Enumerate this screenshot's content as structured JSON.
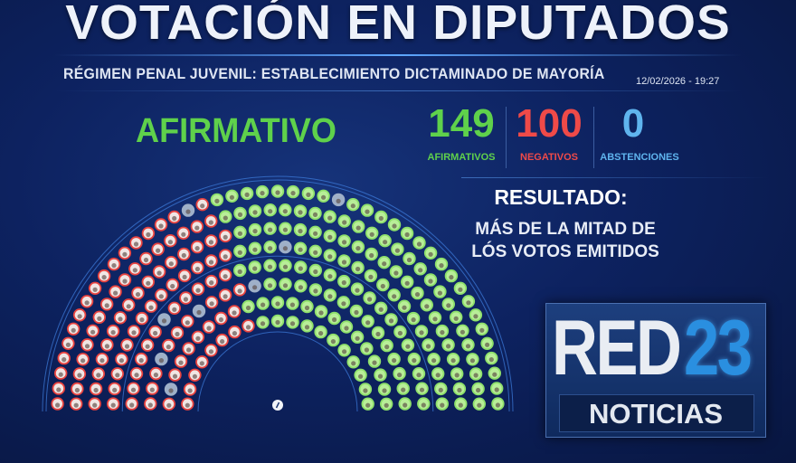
{
  "header": {
    "title": "VOTACIÓN EN DIPUTADOS",
    "subtitle": "RÉGIMEN PENAL JUVENIL: ESTABLECIMIENTO DICTAMINADO DE MAYORÍA",
    "datetime": "12/02/2026 - 19:27"
  },
  "result": {
    "outcome": "AFIRMATIVO",
    "outcome_color": "#5fd14b",
    "counts": [
      {
        "value": "149",
        "label": "AFIRMATIVOS",
        "color": "#5fd14b"
      },
      {
        "value": "100",
        "label": "NEGATIVOS",
        "color": "#ef4a48"
      },
      {
        "value": "0",
        "label": "ABSTENCIONES",
        "color": "#5fb4ee"
      }
    ],
    "title": "RESULTADO:",
    "line1": "MÁS DE LA MITAD DE",
    "line2": "LÓS VOTOS EMITIDOS"
  },
  "hemicycle": {
    "afirmativos": 149,
    "negativos": 100,
    "abstenciones": 0,
    "ausentes": 8,
    "colors": {
      "afirmativo": "#8ee06a",
      "negativo": "#e8433f",
      "ausente": "#9fb0c8"
    },
    "president_icon": "slash-icon"
  },
  "logo": {
    "brand": "RED",
    "number": "23",
    "tag": "NOTICIAS"
  }
}
